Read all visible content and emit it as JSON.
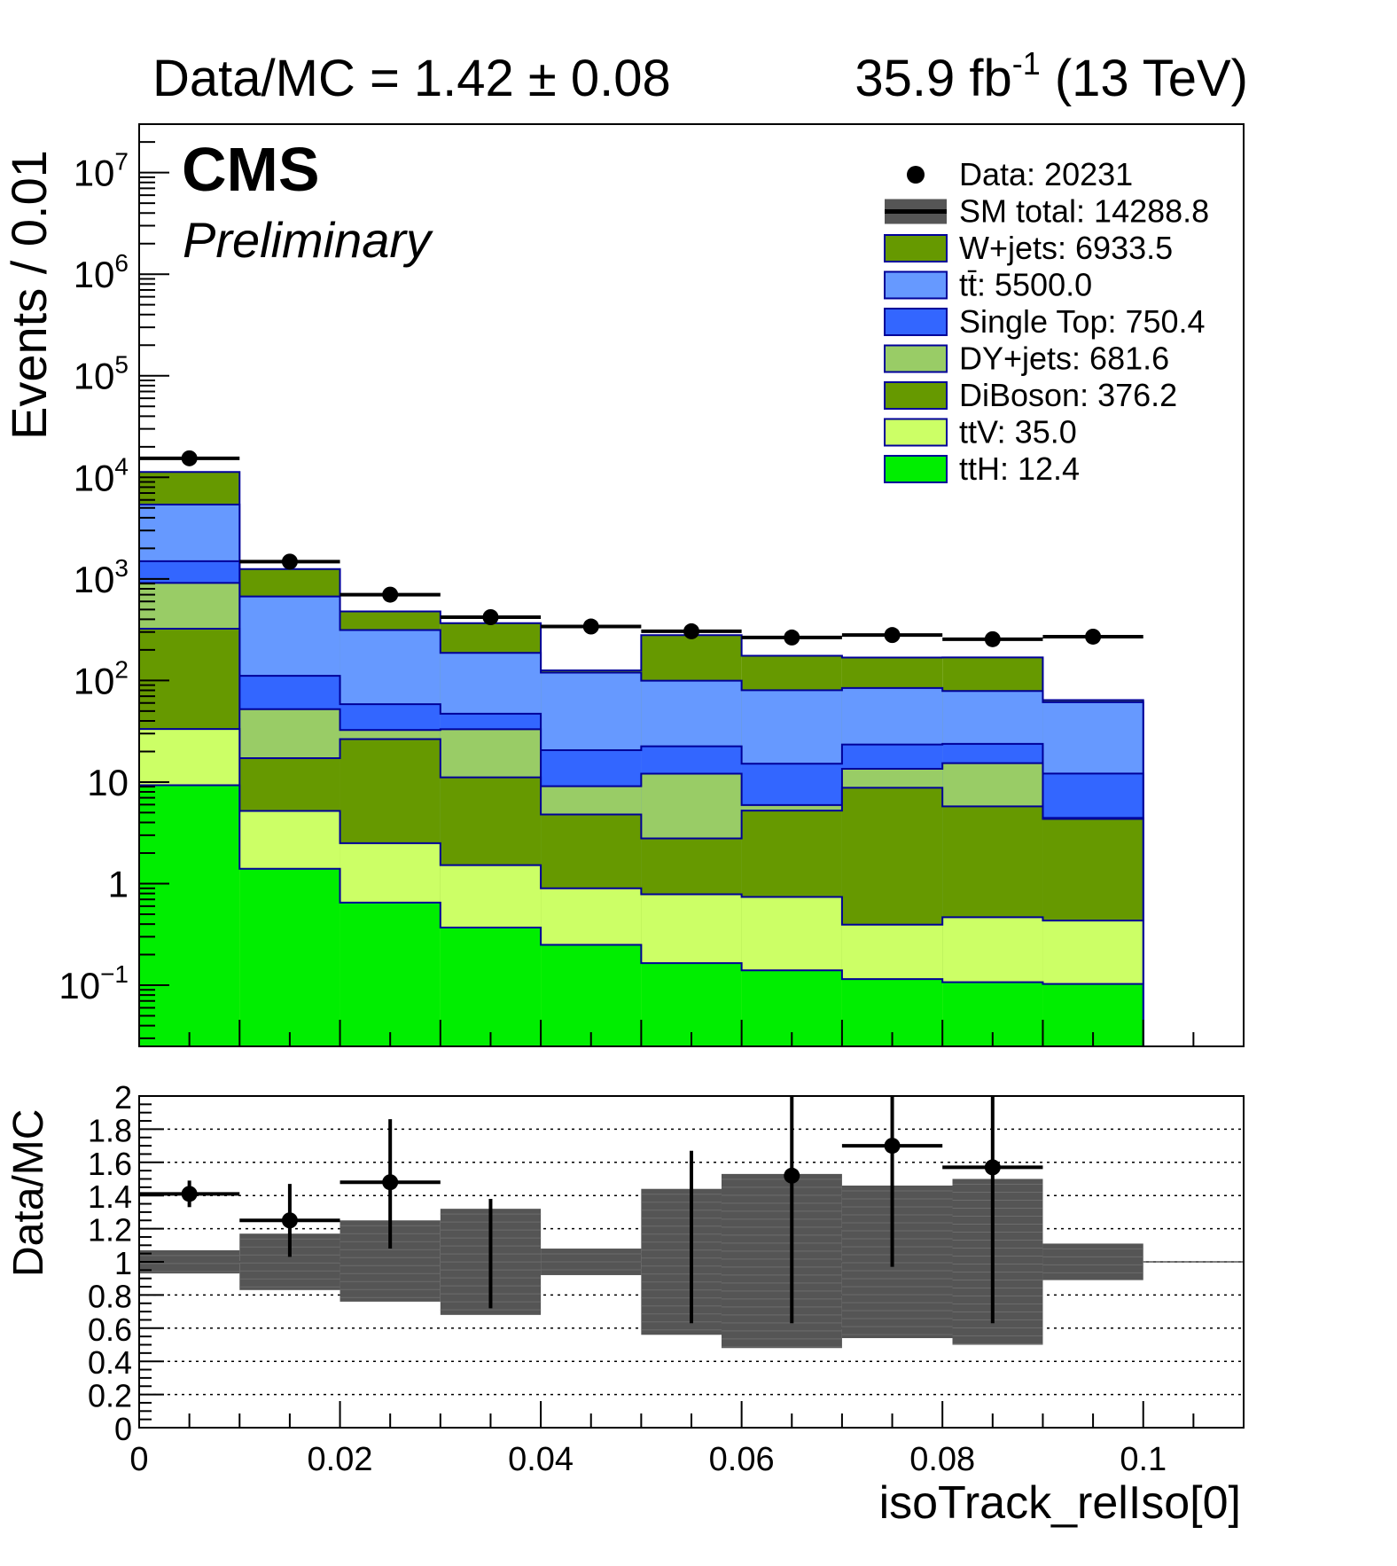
{
  "header": {
    "left": "Data/MC = 1.42 ± 0.08",
    "right_lumi": "35.9 fb",
    "right_sup": "-1",
    "right_energy": "(13 TeV)"
  },
  "cms": {
    "label": "CMS",
    "sublabel": "Preliminary"
  },
  "colors": {
    "W+jets": "#669900",
    "tt": "#6699ff",
    "Single Top": "#3366ff",
    "DY+jets": "#99cc66",
    "DiBoson": "#669900",
    "ttV": "#ccff66",
    "ttH": "#00ee00",
    "outline": "#000099",
    "uncertainty": "#555555"
  },
  "chart_data": [
    {
      "type": "bar",
      "subtype": "stacked-histogram-log",
      "ylabel": "Events / 0.01",
      "yscale": "log",
      "ylim": [
        0.025,
        30000000
      ],
      "xlim": [
        0,
        0.11
      ],
      "y_ticks": [
        {
          "v": 10000000,
          "base": "10",
          "exp": "7"
        },
        {
          "v": 1000000,
          "base": "10",
          "exp": "6"
        },
        {
          "v": 100000,
          "base": "10",
          "exp": "5"
        },
        {
          "v": 10000,
          "base": "10",
          "exp": "4"
        },
        {
          "v": 1000,
          "base": "10",
          "exp": "3"
        },
        {
          "v": 100,
          "base": "10",
          "exp": "2"
        },
        {
          "v": 10,
          "base": "10",
          "exp": ""
        },
        {
          "v": 1,
          "base": "1",
          "exp": ""
        },
        {
          "v": 0.1,
          "base": "10",
          "exp": "−1"
        }
      ],
      "bin_edges": [
        0,
        0.01,
        0.02,
        0.03,
        0.04,
        0.05,
        0.06,
        0.07,
        0.08,
        0.09,
        0.1
      ],
      "stack_order_bottom_to_top": [
        "ttH",
        "ttV",
        "DiBoson",
        "DY+jets",
        "Single Top",
        "tt",
        "W+jets"
      ],
      "series": [
        {
          "name": "ttH",
          "values": [
            9.3,
            1.4,
            0.65,
            0.37,
            0.25,
            0.165,
            0.14,
            0.115,
            0.107,
            0.103
          ]
        },
        {
          "name": "ttV",
          "values": [
            24,
            3.8,
            1.85,
            1.15,
            0.65,
            0.62,
            0.6,
            0.28,
            0.36,
            0.33
          ]
        },
        {
          "name": "DiBoson",
          "values": [
            290,
            12,
            24,
            9.6,
            3.9,
            2.0,
            4.5,
            8.4,
            5.3,
            3.9
          ]
        },
        {
          "name": "DY+jets",
          "values": [
            590,
            35,
            6.0,
            22,
            4.3,
            9.3,
            0.7,
            4.7,
            9.6,
            0.1
          ]
        },
        {
          "name": "Single Top",
          "values": [
            580,
            59,
            26,
            14,
            11.5,
            10.4,
            9.2,
            9.9,
            8.4,
            7.7
          ]
        },
        {
          "name": "tt",
          "values": [
            3900,
            560,
            255,
            140,
            99,
            77,
            65,
            61,
            55,
            49
          ]
        },
        {
          "name": "W+jets",
          "values": [
            5900,
            580,
            165,
            180,
            6,
            180,
            95,
            84,
            90,
            3
          ]
        }
      ],
      "data_points": [
        15400,
        1480,
        700,
        420,
        340,
        305,
        265,
        280,
        255,
        270
      ],
      "legend_position": "top-right",
      "legend": [
        {
          "key": "Data",
          "label": "Data: 20231",
          "style": "marker"
        },
        {
          "key": "SM",
          "label": "SM total: 14288.8",
          "style": "band"
        },
        {
          "key": "W+jets",
          "label": "W+jets: 6933.5",
          "style": "box"
        },
        {
          "key": "tt",
          "label": "tt̄: 5500.0",
          "style": "box"
        },
        {
          "key": "Single Top",
          "label": "Single Top: 750.4",
          "style": "box"
        },
        {
          "key": "DY+jets",
          "label": "DY+jets: 681.6",
          "style": "box"
        },
        {
          "key": "DiBoson",
          "label": "DiBoson: 376.2",
          "style": "box"
        },
        {
          "key": "ttV",
          "label": "ttV: 35.0",
          "style": "box"
        },
        {
          "key": "ttH",
          "label": "ttH: 12.4",
          "style": "box"
        }
      ]
    },
    {
      "type": "scatter",
      "subtype": "ratio",
      "xlabel": "isoTrack_relIso[0]",
      "ylabel": "Data/MC",
      "ylim": [
        0,
        2
      ],
      "xlim": [
        0,
        0.11
      ],
      "y_ticks": [
        "0",
        "0.2",
        "0.4",
        "0.6",
        "0.8",
        "1",
        "1.2",
        "1.4",
        "1.6",
        "1.8",
        "2"
      ],
      "x_ticks": [
        "0",
        "0.02",
        "0.04",
        "0.06",
        "0.08",
        "0.1"
      ],
      "grid": true,
      "bin_edges": [
        0,
        0.01,
        0.02,
        0.03,
        0.04,
        0.05,
        0.06,
        0.07,
        0.08,
        0.09,
        0.1
      ],
      "unc_band": [
        {
          "x0": 0,
          "x1": 0.01,
          "lo": 0.93,
          "hi": 1.07
        },
        {
          "x0": 0.01,
          "x1": 0.02,
          "lo": 0.83,
          "hi": 1.17
        },
        {
          "x0": 0.02,
          "x1": 0.03,
          "lo": 0.76,
          "hi": 1.25
        },
        {
          "x0": 0.03,
          "x1": 0.04,
          "lo": 0.68,
          "hi": 1.32
        },
        {
          "x0": 0.04,
          "x1": 0.05,
          "lo": 0.92,
          "hi": 1.08
        },
        {
          "x0": 0.05,
          "x1": 0.058,
          "lo": 0.56,
          "hi": 1.44
        },
        {
          "x0": 0.058,
          "x1": 0.07,
          "lo": 0.48,
          "hi": 1.53
        },
        {
          "x0": 0.07,
          "x1": 0.081,
          "lo": 0.54,
          "hi": 1.46
        },
        {
          "x0": 0.081,
          "x1": 0.09,
          "lo": 0.5,
          "hi": 1.5
        },
        {
          "x0": 0.09,
          "x1": 0.1,
          "lo": 0.89,
          "hi": 1.11
        }
      ],
      "points": [
        {
          "x": 0.005,
          "y": 1.41,
          "lo": 1.33,
          "hi": 1.49,
          "xerr": 0.005,
          "marker": true
        },
        {
          "x": 0.015,
          "y": 1.25,
          "lo": 1.03,
          "hi": 1.47,
          "xerr": 0.005,
          "marker": true
        },
        {
          "x": 0.025,
          "y": 1.48,
          "lo": 1.08,
          "hi": 1.86,
          "xerr": 0.005,
          "marker": true
        },
        {
          "x": 0.035,
          "y": 1.05,
          "lo": 0.72,
          "hi": 1.38,
          "xerr": 0,
          "marker": false
        },
        {
          "x": 0.055,
          "y": 1.15,
          "lo": 0.63,
          "hi": 1.67,
          "xerr": 0,
          "marker": false
        },
        {
          "x": 0.065,
          "y": 1.52,
          "lo": 0.63,
          "hi": 2.0,
          "xerr": 0,
          "marker": true
        },
        {
          "x": 0.075,
          "y": 1.7,
          "lo": 0.97,
          "hi": 2.0,
          "xerr": 0.005,
          "marker": true
        },
        {
          "x": 0.085,
          "y": 1.57,
          "lo": 0.63,
          "hi": 2.0,
          "xerr": 0.005,
          "marker": true
        }
      ]
    }
  ]
}
